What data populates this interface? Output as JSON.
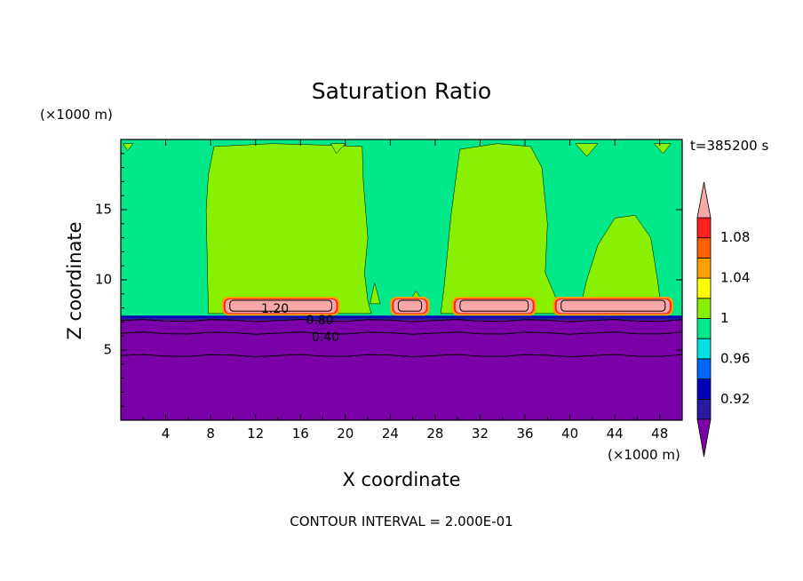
{
  "chart_data": {
    "type": "contour",
    "title": "Saturation Ratio",
    "xlabel": "X coordinate",
    "ylabel": "Z coordinate",
    "x_units": "(×1000 m)",
    "y_units": "(×1000 m)",
    "time_label": "t=385200 s",
    "footnote": "CONTOUR INTERVAL = 2.000E-01",
    "xlim": [
      0,
      50
    ],
    "ylim": [
      0,
      20
    ],
    "xticks": [
      "4",
      "8",
      "12",
      "16",
      "20",
      "24",
      "28",
      "32",
      "36",
      "40",
      "44",
      "48"
    ],
    "xtick_values": [
      4,
      8,
      12,
      16,
      20,
      24,
      28,
      32,
      36,
      40,
      44,
      48
    ],
    "yticks": [
      "5",
      "10",
      "15"
    ],
    "ytick_values": [
      5,
      10,
      15
    ],
    "colorbar": {
      "labels": [
        "1.08",
        "1.04",
        "1",
        "0.96",
        "0.92"
      ],
      "label_values": [
        1.08,
        1.04,
        1.0,
        0.96,
        0.92
      ],
      "levels": [
        0.92,
        0.94,
        0.96,
        0.98,
        1.0,
        1.02,
        1.04,
        1.06,
        1.08,
        1.1
      ],
      "colors": [
        "#7a00a8",
        "#2a1aa0",
        "#0000b8",
        "#0066ff",
        "#00e0e0",
        "#00e88a",
        "#88f000",
        "#ffff00",
        "#ffa000",
        "#ff6000",
        "#ff2020",
        "#f8a8a8"
      ]
    },
    "contour_labels": [
      {
        "text": "1.20",
        "x": 12.5,
        "z": 7.9
      },
      {
        "text": "0.80",
        "x": 16.5,
        "z": 7.1
      },
      {
        "text": "0.40",
        "x": 17.0,
        "z": 5.9
      }
    ],
    "regions": {
      "subsaturated_top_z": 7.3,
      "upper_background_value": 0.99,
      "cloud_value": 1.01,
      "peak_value": 1.2,
      "lower_value": 0.4,
      "plumes_x_ranges": [
        [
          7.8,
          22
        ],
        [
          28.5,
          39.5
        ],
        [
          41,
          48
        ]
      ],
      "supersaturated_patches_x_ranges": [
        [
          9,
          19.5
        ],
        [
          24,
          27.5
        ],
        [
          29.5,
          37
        ],
        [
          38.5,
          49.2
        ]
      ]
    }
  }
}
